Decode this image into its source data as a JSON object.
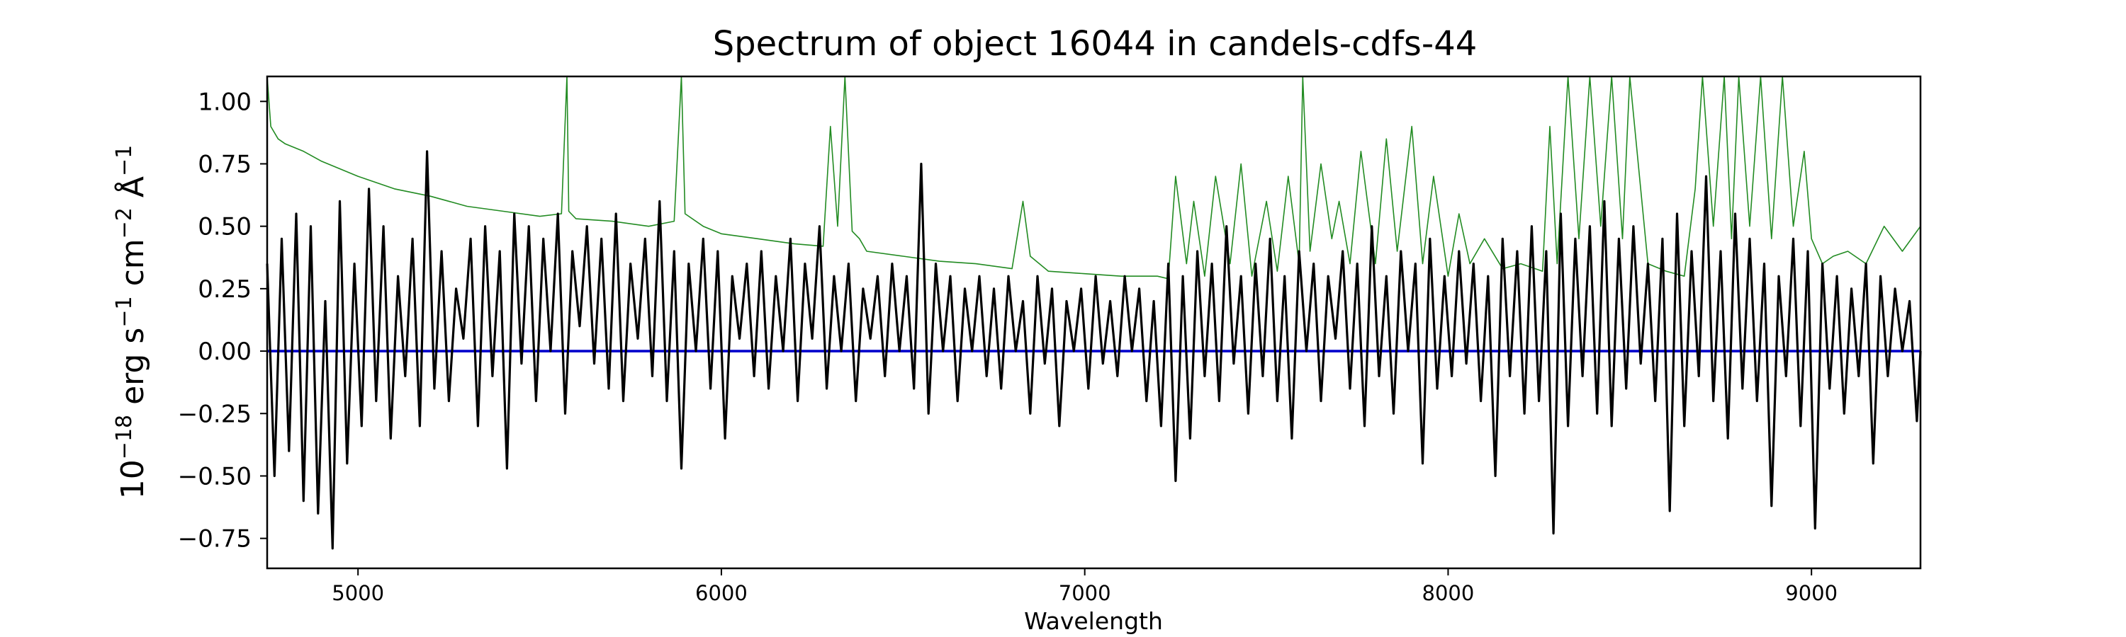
{
  "chart_data": {
    "type": "line",
    "title": "Spectrum of object 16044 in candels-cdfs-44",
    "xlabel": "Wavelength",
    "ylabel": {
      "base": "10",
      "exp": "−18",
      "unit1": " erg s",
      "exp1": "−1",
      "unit2": " cm",
      "exp2": "−2",
      "unit3": " Å",
      "exp3": "−1"
    },
    "xlim": [
      4750,
      9300
    ],
    "ylim": [
      -0.87,
      1.1
    ],
    "xticks": [
      5000,
      6000,
      7000,
      8000,
      9000
    ],
    "xtick_labels": [
      "5000",
      "6000",
      "7000",
      "8000",
      "9000"
    ],
    "yticks": [
      -0.75,
      -0.5,
      -0.25,
      0.0,
      0.25,
      0.5,
      0.75,
      1.0
    ],
    "ytick_labels": [
      "−0.75",
      "−0.50",
      "−0.25",
      "0.00",
      "0.25",
      "0.50",
      "0.75",
      "1.00"
    ],
    "grid": false,
    "legend": "none",
    "series": [
      {
        "role": "flux",
        "color": "#000000",
        "x": [
          4750,
          4770,
          4790,
          4810,
          4830,
          4850,
          4870,
          4890,
          4910,
          4930,
          4950,
          4970,
          4990,
          5010,
          5030,
          5050,
          5070,
          5090,
          5110,
          5130,
          5150,
          5170,
          5190,
          5210,
          5230,
          5250,
          5270,
          5290,
          5310,
          5330,
          5350,
          5370,
          5390,
          5410,
          5430,
          5450,
          5470,
          5490,
          5510,
          5530,
          5550,
          5570,
          5590,
          5610,
          5630,
          5650,
          5670,
          5690,
          5710,
          5730,
          5750,
          5770,
          5790,
          5810,
          5830,
          5850,
          5870,
          5890,
          5910,
          5930,
          5950,
          5970,
          5990,
          6010,
          6030,
          6050,
          6070,
          6090,
          6110,
          6130,
          6150,
          6170,
          6190,
          6210,
          6230,
          6250,
          6270,
          6290,
          6310,
          6330,
          6350,
          6370,
          6390,
          6410,
          6430,
          6450,
          6470,
          6490,
          6510,
          6530,
          6550,
          6570,
          6590,
          6610,
          6630,
          6650,
          6670,
          6690,
          6710,
          6730,
          6750,
          6770,
          6790,
          6810,
          6830,
          6850,
          6870,
          6890,
          6910,
          6930,
          6950,
          6970,
          6990,
          7010,
          7030,
          7050,
          7070,
          7090,
          7110,
          7130,
          7150,
          7170,
          7190,
          7210,
          7230,
          7250,
          7270,
          7290,
          7310,
          7330,
          7350,
          7370,
          7390,
          7410,
          7430,
          7450,
          7470,
          7490,
          7510,
          7530,
          7550,
          7570,
          7590,
          7610,
          7630,
          7650,
          7670,
          7690,
          7710,
          7730,
          7750,
          7770,
          7790,
          7810,
          7830,
          7850,
          7870,
          7890,
          7910,
          7930,
          7950,
          7970,
          7990,
          8010,
          8030,
          8050,
          8070,
          8090,
          8110,
          8130,
          8150,
          8170,
          8190,
          8210,
          8230,
          8250,
          8270,
          8290,
          8310,
          8330,
          8350,
          8370,
          8390,
          8410,
          8430,
          8450,
          8470,
          8490,
          8510,
          8530,
          8550,
          8570,
          8590,
          8610,
          8630,
          8650,
          8670,
          8690,
          8710,
          8730,
          8750,
          8770,
          8790,
          8810,
          8830,
          8850,
          8870,
          8890,
          8910,
          8930,
          8950,
          8970,
          8990,
          9010,
          9030,
          9050,
          9070,
          9090,
          9110,
          9130,
          9150,
          9170,
          9190,
          9210,
          9230,
          9250,
          9270,
          9290,
          9300
        ],
        "y": [
          0.35,
          -0.5,
          0.45,
          -0.4,
          0.55,
          -0.6,
          0.5,
          -0.65,
          0.2,
          -0.79,
          0.6,
          -0.45,
          0.35,
          -0.3,
          0.65,
          -0.2,
          0.5,
          -0.35,
          0.3,
          -0.1,
          0.45,
          -0.3,
          0.8,
          -0.15,
          0.4,
          -0.2,
          0.25,
          0.05,
          0.45,
          -0.3,
          0.5,
          -0.1,
          0.4,
          -0.47,
          0.55,
          -0.05,
          0.5,
          -0.2,
          0.45,
          0.0,
          0.55,
          -0.25,
          0.4,
          0.1,
          0.5,
          -0.05,
          0.45,
          -0.15,
          0.55,
          -0.2,
          0.35,
          0.05,
          0.45,
          -0.1,
          0.6,
          -0.2,
          0.4,
          -0.47,
          0.35,
          0.0,
          0.45,
          -0.15,
          0.4,
          -0.35,
          0.3,
          0.05,
          0.35,
          -0.1,
          0.4,
          -0.15,
          0.3,
          0.0,
          0.45,
          -0.2,
          0.35,
          0.05,
          0.5,
          -0.15,
          0.3,
          0.0,
          0.35,
          -0.2,
          0.25,
          0.05,
          0.3,
          -0.1,
          0.35,
          0.0,
          0.3,
          -0.15,
          0.75,
          -0.25,
          0.35,
          0.0,
          0.3,
          -0.2,
          0.25,
          0.0,
          0.3,
          -0.1,
          0.25,
          -0.15,
          0.3,
          0.0,
          0.2,
          -0.25,
          0.3,
          -0.05,
          0.25,
          -0.3,
          0.2,
          0.0,
          0.25,
          -0.15,
          0.3,
          -0.05,
          0.2,
          -0.1,
          0.3,
          0.0,
          0.25,
          -0.2,
          0.2,
          -0.3,
          0.35,
          -0.52,
          0.3,
          -0.35,
          0.4,
          -0.1,
          0.35,
          -0.2,
          0.5,
          -0.05,
          0.3,
          -0.25,
          0.35,
          -0.1,
          0.45,
          -0.2,
          0.3,
          -0.35,
          0.4,
          0.0,
          0.35,
          -0.2,
          0.3,
          0.05,
          0.4,
          -0.15,
          0.35,
          -0.3,
          0.5,
          -0.1,
          0.3,
          -0.25,
          0.4,
          0.0,
          0.35,
          -0.45,
          0.45,
          -0.15,
          0.3,
          -0.1,
          0.4,
          -0.05,
          0.35,
          -0.2,
          0.3,
          -0.5,
          0.45,
          -0.1,
          0.4,
          -0.25,
          0.5,
          -0.2,
          0.4,
          -0.73,
          0.55,
          -0.3,
          0.45,
          -0.1,
          0.5,
          -0.25,
          0.6,
          -0.3,
          0.45,
          -0.15,
          0.5,
          -0.05,
          0.35,
          -0.2,
          0.45,
          -0.64,
          0.55,
          -0.3,
          0.4,
          -0.1,
          0.7,
          -0.2,
          0.4,
          -0.35,
          0.55,
          -0.15,
          0.45,
          -0.2,
          0.35,
          -0.62,
          0.3,
          -0.1,
          0.45,
          -0.3,
          0.4,
          -0.71,
          0.35,
          -0.15,
          0.3,
          -0.25,
          0.25,
          -0.1,
          0.35,
          -0.45,
          0.3,
          -0.1,
          0.25,
          0.0,
          0.2,
          -0.28,
          0.0
        ]
      },
      {
        "role": "error",
        "color": "#228b22",
        "x": [
          4750,
          4760,
          4780,
          4800,
          4850,
          4900,
          5000,
          5100,
          5200,
          5300,
          5400,
          5500,
          5560,
          5575,
          5580,
          5600,
          5700,
          5800,
          5870,
          5890,
          5900,
          5950,
          6000,
          6100,
          6200,
          6280,
          6300,
          6320,
          6340,
          6360,
          6380,
          6400,
          6500,
          6600,
          6700,
          6800,
          6830,
          6850,
          6900,
          7000,
          7100,
          7200,
          7230,
          7250,
          7280,
          7300,
          7330,
          7360,
          7400,
          7430,
          7460,
          7500,
          7530,
          7560,
          7590,
          7600,
          7620,
          7650,
          7680,
          7700,
          7730,
          7760,
          7800,
          7830,
          7860,
          7900,
          7930,
          7960,
          8000,
          8030,
          8060,
          8100,
          8150,
          8200,
          8260,
          8280,
          8300,
          8330,
          8360,
          8390,
          8420,
          8450,
          8480,
          8500,
          8550,
          8600,
          8650,
          8680,
          8700,
          8730,
          8760,
          8780,
          8800,
          8830,
          8860,
          8890,
          8920,
          8950,
          8980,
          9000,
          9030,
          9060,
          9100,
          9150,
          9200,
          9250,
          9300
        ],
        "y": [
          1.1,
          0.9,
          0.85,
          0.83,
          0.8,
          0.76,
          0.7,
          0.65,
          0.62,
          0.58,
          0.56,
          0.54,
          0.55,
          1.1,
          0.56,
          0.53,
          0.52,
          0.5,
          0.52,
          1.1,
          0.55,
          0.5,
          0.47,
          0.45,
          0.43,
          0.42,
          0.9,
          0.5,
          1.1,
          0.48,
          0.45,
          0.4,
          0.38,
          0.36,
          0.35,
          0.33,
          0.6,
          0.38,
          0.32,
          0.31,
          0.3,
          0.3,
          0.29,
          0.7,
          0.35,
          0.6,
          0.3,
          0.7,
          0.35,
          0.75,
          0.3,
          0.6,
          0.32,
          0.7,
          0.35,
          1.1,
          0.4,
          0.75,
          0.45,
          0.6,
          0.35,
          0.8,
          0.35,
          0.85,
          0.4,
          0.9,
          0.35,
          0.7,
          0.3,
          0.55,
          0.35,
          0.45,
          0.33,
          0.35,
          0.32,
          0.9,
          0.35,
          1.1,
          0.45,
          1.1,
          0.5,
          1.1,
          0.45,
          1.1,
          0.35,
          0.32,
          0.3,
          0.65,
          1.1,
          0.5,
          1.1,
          0.45,
          1.1,
          0.5,
          1.1,
          0.45,
          1.1,
          0.5,
          0.8,
          0.45,
          0.35,
          0.38,
          0.4,
          0.35,
          0.5,
          0.4,
          0.5
        ]
      },
      {
        "role": "zero",
        "color": "#0000cc",
        "x": [
          4750,
          9300
        ],
        "y": [
          0.0,
          0.0
        ]
      }
    ]
  }
}
